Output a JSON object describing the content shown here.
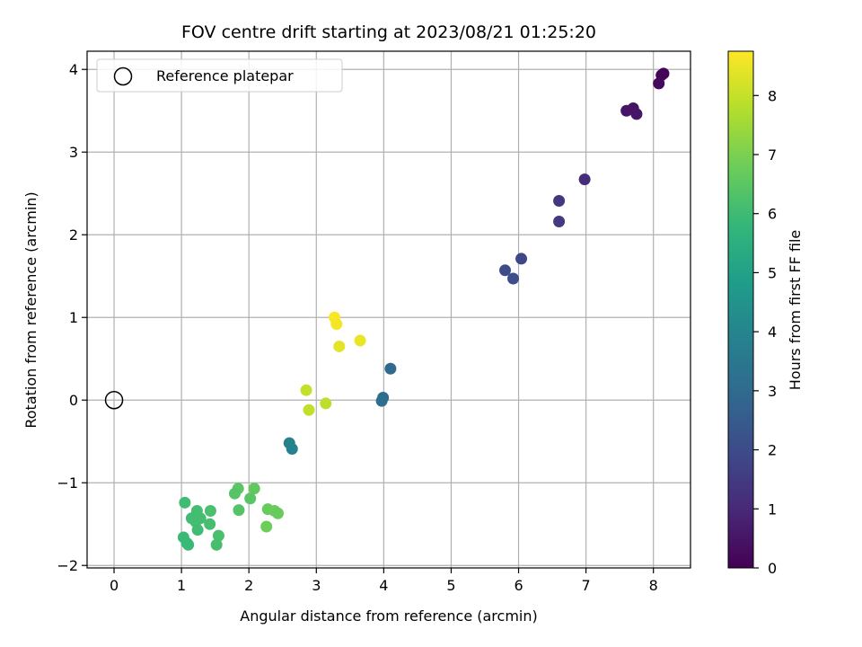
{
  "chart_data": {
    "type": "scatter",
    "title": "FOV centre drift starting at 2023/08/21 01:25:20",
    "xlabel": "Angular distance from reference (arcmin)",
    "ylabel": "Rotation from reference (arcmin)",
    "xlim": [
      -0.4,
      8.55
    ],
    "ylim": [
      -2.03,
      4.22
    ],
    "xticks": [
      0,
      1,
      2,
      3,
      4,
      5,
      6,
      7,
      8
    ],
    "yticks": [
      -2,
      -1,
      0,
      1,
      2,
      3,
      4
    ],
    "grid": true,
    "legend": {
      "position": "top-left",
      "entries": [
        "Reference platepar"
      ]
    },
    "reference_point": {
      "x": 0,
      "y": 0,
      "label": "Reference platepar"
    },
    "colorbar": {
      "label": "Hours from first FF file",
      "min": 0,
      "max": 8.75,
      "ticks": [
        0,
        1,
        2,
        3,
        4,
        5,
        6,
        7,
        8
      ],
      "colormap": "viridis"
    },
    "points": [
      {
        "x": 8.15,
        "y": 3.95,
        "c": 0.05
      },
      {
        "x": 8.12,
        "y": 3.93,
        "c": 0.1
      },
      {
        "x": 8.08,
        "y": 3.83,
        "c": 0.2
      },
      {
        "x": 7.7,
        "y": 3.53,
        "c": 0.45
      },
      {
        "x": 7.6,
        "y": 3.5,
        "c": 0.5
      },
      {
        "x": 7.75,
        "y": 3.46,
        "c": 0.55
      },
      {
        "x": 6.98,
        "y": 2.67,
        "c": 1.1
      },
      {
        "x": 6.6,
        "y": 2.41,
        "c": 1.4
      },
      {
        "x": 6.6,
        "y": 2.16,
        "c": 1.5
      },
      {
        "x": 6.04,
        "y": 1.71,
        "c": 1.9
      },
      {
        "x": 5.8,
        "y": 1.57,
        "c": 2.0
      },
      {
        "x": 5.92,
        "y": 1.47,
        "c": 2.1
      },
      {
        "x": 4.1,
        "y": 0.38,
        "c": 3.0
      },
      {
        "x": 3.99,
        "y": 0.03,
        "c": 3.1
      },
      {
        "x": 3.97,
        "y": -0.01,
        "c": 3.15
      },
      {
        "x": 2.6,
        "y": -0.52,
        "c": 3.8
      },
      {
        "x": 2.64,
        "y": -0.59,
        "c": 3.85
      },
      {
        "x": 3.27,
        "y": 1.0,
        "c": 8.7
      },
      {
        "x": 3.3,
        "y": 0.92,
        "c": 8.6
      },
      {
        "x": 3.65,
        "y": 0.72,
        "c": 8.5
      },
      {
        "x": 3.34,
        "y": 0.65,
        "c": 8.4
      },
      {
        "x": 2.85,
        "y": 0.12,
        "c": 8.0
      },
      {
        "x": 3.14,
        "y": -0.04,
        "c": 7.9
      },
      {
        "x": 2.89,
        "y": -0.12,
        "c": 7.95
      },
      {
        "x": 1.84,
        "y": -1.07,
        "c": 6.5
      },
      {
        "x": 2.08,
        "y": -1.07,
        "c": 6.6
      },
      {
        "x": 1.79,
        "y": -1.13,
        "c": 6.4
      },
      {
        "x": 2.02,
        "y": -1.19,
        "c": 6.45
      },
      {
        "x": 1.05,
        "y": -1.24,
        "c": 6.0
      },
      {
        "x": 2.28,
        "y": -1.32,
        "c": 6.7
      },
      {
        "x": 1.85,
        "y": -1.33,
        "c": 6.4
      },
      {
        "x": 2.38,
        "y": -1.34,
        "c": 6.75
      },
      {
        "x": 2.43,
        "y": -1.37,
        "c": 6.7
      },
      {
        "x": 1.23,
        "y": -1.34,
        "c": 6.1
      },
      {
        "x": 1.43,
        "y": -1.34,
        "c": 6.2
      },
      {
        "x": 1.15,
        "y": -1.43,
        "c": 6.05
      },
      {
        "x": 1.28,
        "y": -1.43,
        "c": 6.1
      },
      {
        "x": 1.21,
        "y": -1.47,
        "c": 6.1
      },
      {
        "x": 1.42,
        "y": -1.5,
        "c": 6.15
      },
      {
        "x": 2.26,
        "y": -1.53,
        "c": 6.8
      },
      {
        "x": 1.24,
        "y": -1.57,
        "c": 6.05
      },
      {
        "x": 1.03,
        "y": -1.66,
        "c": 5.95
      },
      {
        "x": 1.55,
        "y": -1.64,
        "c": 6.2
      },
      {
        "x": 1.08,
        "y": -1.73,
        "c": 5.9
      },
      {
        "x": 1.1,
        "y": -1.75,
        "c": 5.9
      },
      {
        "x": 1.52,
        "y": -1.75,
        "c": 6.15
      }
    ]
  }
}
